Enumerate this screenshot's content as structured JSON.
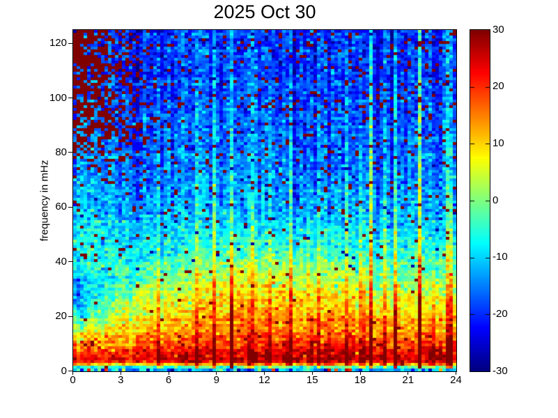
{
  "colors": {
    "background": "#ffffff",
    "axis": "#000000",
    "colormap_min": "#000080",
    "colormap_max": "#800000"
  },
  "chart_data": {
    "type": "heatmap",
    "title": "2025 Oct 30",
    "xlabel": "",
    "ylabel": "frequency in mHz",
    "x_range": [
      0,
      24
    ],
    "y_range": [
      0,
      125
    ],
    "x_ticks": [
      0,
      3,
      6,
      9,
      12,
      15,
      18,
      21,
      24
    ],
    "y_ticks": [
      0,
      20,
      40,
      60,
      80,
      100,
      120
    ],
    "colormap": "jet",
    "colorbar": {
      "min": -30,
      "max": 30,
      "ticks": [
        30,
        20,
        10,
        0,
        -10,
        -20,
        -30
      ]
    },
    "description": "Day-long power spectrogram (dB, jet colormap, -30 to +30) versus hour of day (0-24) and frequency (0-125 mHz). Strong red band below ~10 mHz all day; power decays toward blue at high frequency. Saturated red/blue speckle noise fills the top-left corner (00-05 h, >70 mHz) with sparse red speckle elsewhere. Quiet blue patch 0-3 h near 15-35 mHz. Narrow bright vertical enhancement stripes near 9.9, 17.0, 18.2, 18.7, 19.6, 20.2, 21.8 and 23.5 h; impulsive low-frequency bursts reaching 25-38 mHz near 10, 11, 15, 20.2 and 21.7 h.",
    "render": {
      "seed": 20251030,
      "grid": {
        "cols": 110,
        "rows": 122
      },
      "noise_sigma": 3.4,
      "col_offset_sigma": 1.3,
      "col_highfreq_sigma": 2.2,
      "row_offset_sigma": 0.7,
      "base_profile_db": [
        [
          0,
          -13
        ],
        [
          1.2,
          -7
        ],
        [
          2,
          2
        ],
        [
          3,
          20
        ],
        [
          4.2,
          26
        ],
        [
          6,
          24
        ],
        [
          8,
          21
        ],
        [
          10,
          17
        ],
        [
          13,
          14
        ],
        [
          17,
          11
        ],
        [
          22,
          8
        ],
        [
          28,
          4
        ],
        [
          34,
          0
        ],
        [
          41,
          -4
        ],
        [
          48,
          -8
        ],
        [
          57,
          -11
        ],
        [
          68,
          -14
        ],
        [
          80,
          -16
        ],
        [
          95,
          -17.5
        ],
        [
          110,
          -18.5
        ],
        [
          125,
          -19
        ]
      ],
      "diurnal_low_db": [
        [
          0,
          -4
        ],
        [
          3,
          -2
        ],
        [
          6,
          0
        ],
        [
          9,
          1
        ],
        [
          12,
          2
        ],
        [
          15,
          2
        ],
        [
          18,
          1
        ],
        [
          24,
          1
        ]
      ],
      "diurnal_mid_db": [
        [
          0,
          -3
        ],
        [
          5,
          -1
        ],
        [
          8,
          2
        ],
        [
          10,
          4
        ],
        [
          13,
          4
        ],
        [
          16,
          3
        ],
        [
          18,
          1
        ],
        [
          21,
          0
        ],
        [
          24,
          -1
        ]
      ],
      "morning_suppression": {
        "amp": 17,
        "h_end": 3.2,
        "f_center": 25,
        "f_sigma": 10
      },
      "speckle": {
        "base_min": 0.015,
        "base_amp": 0.05,
        "tl_amp": 0.7,
        "tl_hours": 5.5,
        "tl_fmin": 68,
        "tr_amp": 0.06,
        "tr_h0": 20,
        "dark_p": 0.012
      },
      "bottom_row": {
        "f_below": 1.3,
        "mean": -13,
        "sigma": 6,
        "red_p": 0.07
      },
      "stripes": [
        {
          "h": 5.3,
          "amp": 8,
          "w": 1
        },
        {
          "h": 7.7,
          "amp": 9,
          "w": 1
        },
        {
          "h": 8.9,
          "amp": 9,
          "w": 1
        },
        {
          "h": 9.9,
          "amp": 14,
          "w": 1
        },
        {
          "h": 11.2,
          "amp": 9,
          "w": 1
        },
        {
          "h": 12.4,
          "amp": 8,
          "w": 1
        },
        {
          "h": 13.7,
          "amp": 9,
          "w": 1
        },
        {
          "h": 15.3,
          "amp": 10,
          "w": 1
        },
        {
          "h": 17.05,
          "amp": 10,
          "w": 1
        },
        {
          "h": 18.15,
          "amp": 10,
          "w": 2
        },
        {
          "h": 18.65,
          "amp": 18,
          "w": 1
        },
        {
          "h": 19.55,
          "amp": 11,
          "w": 1
        },
        {
          "h": 20.2,
          "amp": 11,
          "w": 1
        },
        {
          "h": 21.75,
          "amp": 19,
          "w": 1
        },
        {
          "h": 22.6,
          "amp": 8,
          "w": 1
        },
        {
          "h": 23.5,
          "amp": 15,
          "w": 2
        }
      ],
      "low_freq_events": [
        {
          "h": 1.0,
          "max_f": 14,
          "amp": 5
        },
        {
          "h": 5.5,
          "max_f": 20,
          "amp": 7
        },
        {
          "h": 7.0,
          "max_f": 22,
          "amp": 7
        },
        {
          "h": 9.95,
          "max_f": 36,
          "amp": 15
        },
        {
          "h": 11.0,
          "max_f": 30,
          "amp": 11
        },
        {
          "h": 12.2,
          "max_f": 26,
          "amp": 9
        },
        {
          "h": 13.4,
          "max_f": 24,
          "amp": 8
        },
        {
          "h": 14.9,
          "max_f": 28,
          "amp": 10
        },
        {
          "h": 16.0,
          "max_f": 24,
          "amp": 8
        },
        {
          "h": 20.2,
          "max_f": 32,
          "amp": 14
        },
        {
          "h": 21.7,
          "max_f": 38,
          "amp": 16
        },
        {
          "h": 22.3,
          "max_f": 24,
          "amp": 8
        }
      ]
    }
  }
}
